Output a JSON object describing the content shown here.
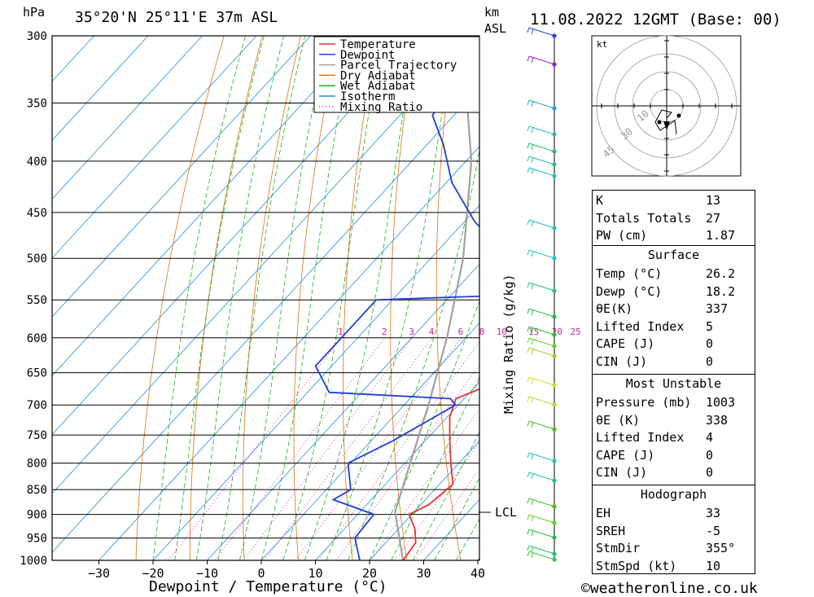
{
  "header": {
    "hpa_label": "hPa",
    "location": "35°20'N 25°11'E 37m ASL",
    "km_label": "km",
    "asl_label": "ASL",
    "datetime": "11.08.2022 12GMT (Base: 00)"
  },
  "footer": {
    "xaxis_title": "Dewpoint / Temperature (°C)",
    "credit": "©weatheronline.co.uk",
    "side_label": "Mixing Ratio (g/kg)",
    "lcl_label": "LCL"
  },
  "legend": {
    "items": [
      {
        "label": "Temperature",
        "color": "#e8332d",
        "style": "solid"
      },
      {
        "label": "Dewpoint",
        "color": "#2040d0",
        "style": "solid"
      },
      {
        "label": "Parcel Trajectory",
        "color": "#a0a0a0",
        "style": "solid"
      },
      {
        "label": "Dry Adiabat",
        "color": "#e07010",
        "style": "solid"
      },
      {
        "label": "Wet Adiabat",
        "color": "#20b020",
        "style": "solid"
      },
      {
        "label": "Isotherm",
        "color": "#2090e0",
        "style": "solid"
      },
      {
        "label": "Mixing Ratio",
        "color": "#d020a0",
        "style": "dotted"
      }
    ]
  },
  "hodograph": {
    "unit": "kt",
    "ring_labels": [
      "10",
      "30",
      "45"
    ]
  },
  "indices": {
    "general": [
      {
        "label": "K",
        "value": "13"
      },
      {
        "label": "Totals Totals",
        "value": "27"
      },
      {
        "label": "PW (cm)",
        "value": "1.87"
      }
    ],
    "surface": {
      "title": "Surface",
      "rows": [
        {
          "label": "Temp (°C)",
          "value": "26.2"
        },
        {
          "label": "Dewp (°C)",
          "value": "18.2"
        },
        {
          "label": "θE(K)",
          "value": "337"
        },
        {
          "label": "Lifted Index",
          "value": "5"
        },
        {
          "label": "CAPE (J)",
          "value": "0"
        },
        {
          "label": "CIN (J)",
          "value": "0"
        }
      ]
    },
    "most_unstable": {
      "title": "Most Unstable",
      "rows": [
        {
          "label": "Pressure (mb)",
          "value": "1003"
        },
        {
          "label": "θE (K)",
          "value": "338"
        },
        {
          "label": "Lifted Index",
          "value": "4"
        },
        {
          "label": "CAPE (J)",
          "value": "0"
        },
        {
          "label": "CIN (J)",
          "value": "0"
        }
      ]
    },
    "hodo": {
      "title": "Hodograph",
      "rows": [
        {
          "label": "EH",
          "value": "33"
        },
        {
          "label": "SREH",
          "value": "-5"
        },
        {
          "label": "StmDir",
          "value": "355°"
        },
        {
          "label": "StmSpd (kt)",
          "value": "10"
        }
      ]
    }
  },
  "colors": {
    "temperature": "#e8332d",
    "dewpoint": "#2040d0",
    "parcel": "#a0a0a0",
    "dry_adiabat": "#e07010",
    "wet_adiabat": "#20b020",
    "isotherm": "#2090e0",
    "mixing_ratio": "#d020a0",
    "wind": "#3aa0c0"
  },
  "chart_data": {
    "type": "line",
    "title": "35°20'N 25°11'E 37m ASL 11.08.2022 12GMT (Base: 00)",
    "xlabel": "Dewpoint / Temperature (°C)",
    "ylabel": "hPa",
    "xlim": [
      -40,
      40
    ],
    "ylim": [
      1000,
      300
    ],
    "y_scale": "log",
    "x_ticks": [
      "-30",
      "-20",
      "-10",
      "0",
      "10",
      "20",
      "30",
      "40"
    ],
    "pressure_ticks": [
      "300",
      "350",
      "400",
      "450",
      "500",
      "550",
      "600",
      "650",
      "700",
      "750",
      "800",
      "850",
      "900",
      "950",
      "1000"
    ],
    "mixing_ratio_labels": [
      "1",
      "2",
      "3",
      "4",
      "6",
      "8",
      "10",
      "15",
      "20",
      "25"
    ],
    "lcl_pressure": 895,
    "series": [
      {
        "name": "Temperature",
        "pressure": [
          1000,
          960,
          930,
          900,
          880,
          860,
          840,
          800,
          760,
          720,
          690,
          670,
          640,
          600,
          560,
          520,
          500,
          460,
          430,
          400,
          380,
          365
        ],
        "values": [
          26.2,
          25.5,
          23,
          19.5,
          21.5,
          22,
          22.5,
          18.5,
          14.5,
          10.5,
          8.5,
          12,
          12,
          9.5,
          6.5,
          4.5,
          3,
          -1,
          -5,
          -8.5,
          -9.5,
          -7
        ]
      },
      {
        "name": "Dewpoint",
        "pressure": [
          1000,
          950,
          900,
          870,
          850,
          800,
          760,
          700,
          690,
          680,
          640,
          600,
          550,
          540,
          520,
          500,
          460,
          420,
          385,
          360,
          330,
          305,
          300
        ],
        "values": [
          18.2,
          13.5,
          13,
          3,
          4.5,
          -0.5,
          4,
          9.5,
          7.5,
          -16,
          -23,
          -23,
          -23,
          17.5,
          -0.5,
          -5,
          -18,
          -29,
          -37,
          -44,
          -45,
          -45,
          -42
        ]
      },
      {
        "name": "Parcel Trajectory",
        "pressure": [
          1000,
          895,
          800,
          700,
          600,
          500,
          400,
          300
        ],
        "values": [
          26.2,
          16.5,
          11,
          4.5,
          -3.5,
          -14,
          -29,
          -52
        ]
      }
    ]
  }
}
